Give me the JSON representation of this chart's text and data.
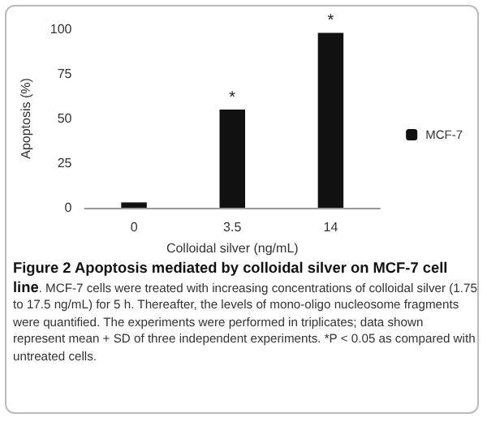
{
  "chart_data": {
    "type": "bar",
    "title": "Figure 2 Apoptosis mediated by colloidal silver on MCF-7 cell line",
    "xlabel": "Colloidal silver (ng/mL)",
    "ylabel": "Apoptosis (%)",
    "categories": [
      "0",
      "3.5",
      "14"
    ],
    "series": [
      {
        "name": "MCF-7",
        "color": "#111111",
        "values": [
          3,
          55,
          98
        ]
      }
    ],
    "ylim": [
      0,
      100
    ],
    "yticks": [
      0,
      25,
      50,
      75,
      100
    ],
    "grid": false,
    "legend": "right",
    "annotations": [
      {
        "text": "*",
        "x": "3.5",
        "y": 55
      },
      {
        "text": "*",
        "x": "14",
        "y": 98
      },
      ". MCF-7 cells were treated with increasing concentrations of colloidal silver (1.75 to 17.5 ng/mL) for 5 h. Thereafter, the levels of mono-oligo nucleosome fragments were quantified. The experiments were performed in triplicates; data shown represent mean + SD of three independent experiments. *P < 0.05 as compared with untreated cells."
    ]
  }
}
